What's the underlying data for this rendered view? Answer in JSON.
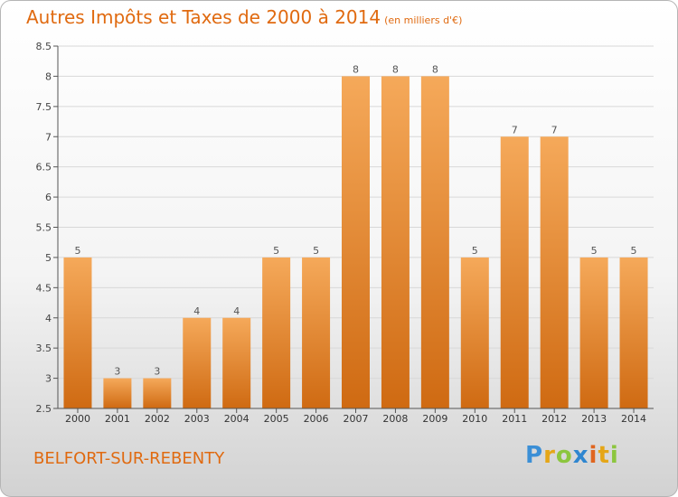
{
  "title": "Autres Impôts et Taxes de 2000 à 2014",
  "subtitle": "(en milliers d'€)",
  "commune": "BELFORT-SUR-REBENTY",
  "logo": {
    "letters": [
      "P",
      "r",
      "o",
      "x",
      "i",
      "t",
      "i"
    ],
    "colors": [
      "#3b8fd6",
      "#e5a617",
      "#8cc63e",
      "#2f86d0",
      "#e0651f",
      "#e5a617",
      "#8cc63e"
    ]
  },
  "colors": {
    "bar_light": "#f5a95a",
    "bar_dark": "#cf6a12",
    "text": "#e06a10",
    "axis": "#555555"
  },
  "chart_data": {
    "type": "bar",
    "title": "Autres Impôts et Taxes de 2000 à 2014",
    "subtitle": "(en milliers d'€)",
    "xlabel": "",
    "ylabel": "",
    "categories": [
      "2000",
      "2001",
      "2002",
      "2003",
      "2004",
      "2005",
      "2006",
      "2007",
      "2008",
      "2009",
      "2010",
      "2011",
      "2012",
      "2013",
      "2014"
    ],
    "values": [
      5,
      3,
      3,
      4,
      4,
      5,
      5,
      8,
      8,
      8,
      5,
      7,
      7,
      5,
      5
    ],
    "data_labels": [
      "5",
      "3",
      "3",
      "4",
      "4",
      "5",
      "5",
      "8",
      "8",
      "8",
      "5",
      "7",
      "7",
      "5",
      "5"
    ],
    "ylim": [
      2.5,
      8.5
    ],
    "yticks": [
      "2.5",
      "3",
      "3.5",
      "4",
      "4.5",
      "5",
      "5.5",
      "6",
      "6.5",
      "7",
      "7.5",
      "8",
      "8.5"
    ],
    "grid": true
  }
}
